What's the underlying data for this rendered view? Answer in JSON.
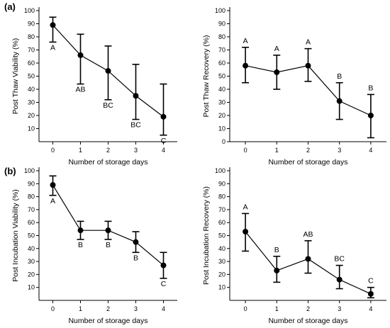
{
  "panels": {
    "a": "(a)",
    "b": "(b)"
  },
  "chart_data": [
    {
      "id": "a-left",
      "type": "line",
      "xlabel": "Number of storage days",
      "ylabel": "Post Thaw Viability (%)",
      "x": [
        0,
        1,
        2,
        3,
        4
      ],
      "xlim": [
        -0.5,
        4.5
      ],
      "ylim": [
        0,
        100
      ],
      "yticks": [
        10,
        20,
        30,
        40,
        50,
        60,
        70,
        80,
        90,
        100
      ],
      "grid": false,
      "series": [
        {
          "values": [
            89,
            66,
            54,
            35,
            19
          ],
          "err_low": [
            76,
            44,
            32,
            17,
            5
          ],
          "err_high": [
            95,
            82,
            73,
            59,
            44
          ]
        }
      ],
      "letters": [
        "A",
        "AB",
        "BC",
        "BC",
        "C"
      ],
      "letter_position": "below"
    },
    {
      "id": "a-right",
      "type": "line",
      "xlabel": "Number of storage days",
      "ylabel": "Post Thaw Recovery (%)",
      "x": [
        0,
        1,
        2,
        3,
        4
      ],
      "xlim": [
        -0.5,
        4.5
      ],
      "ylim": [
        0,
        100
      ],
      "yticks": [
        0,
        10,
        20,
        30,
        40,
        50,
        60,
        70,
        80,
        90,
        100
      ],
      "grid": false,
      "series": [
        {
          "values": [
            58,
            53,
            58,
            31,
            20
          ],
          "err_low": [
            45,
            40,
            46,
            17,
            3
          ],
          "err_high": [
            72,
            66,
            71,
            45,
            36
          ]
        }
      ],
      "letters": [
        "A",
        "A",
        "A",
        "B",
        "B"
      ],
      "letter_position": "above"
    },
    {
      "id": "b-left",
      "type": "line",
      "xlabel": "Number of storage days",
      "ylabel": "Post Incubation Viability (%)",
      "x": [
        0,
        1,
        2,
        3,
        4
      ],
      "xlim": [
        -0.5,
        4.5
      ],
      "ylim": [
        0,
        100
      ],
      "yticks": [
        10,
        20,
        30,
        40,
        50,
        60,
        70,
        80,
        90,
        100
      ],
      "grid": false,
      "series": [
        {
          "values": [
            89,
            54,
            54,
            45,
            27
          ],
          "err_low": [
            81,
            47,
            47,
            37,
            17
          ],
          "err_high": [
            96,
            61,
            61,
            53,
            37
          ]
        }
      ],
      "letters": [
        "A",
        "B",
        "B",
        "B",
        "C"
      ],
      "letter_position": "below"
    },
    {
      "id": "b-right",
      "type": "line",
      "xlabel": "Number of storage days",
      "ylabel": "Post Incubation Recovery (%)",
      "x": [
        0,
        1,
        2,
        3,
        4
      ],
      "xlim": [
        -0.5,
        4.5
      ],
      "ylim": [
        0,
        100
      ],
      "yticks": [
        10,
        20,
        30,
        40,
        50,
        60,
        70,
        80,
        90,
        100
      ],
      "grid": false,
      "series": [
        {
          "values": [
            53,
            23,
            32,
            16,
            5
          ],
          "err_low": [
            38,
            14,
            21,
            9,
            2
          ],
          "err_high": [
            67,
            34,
            46,
            27,
            10
          ]
        }
      ],
      "letters": [
        "A",
        "B",
        "AB",
        "BC",
        "C"
      ],
      "letter_position": "above"
    }
  ]
}
